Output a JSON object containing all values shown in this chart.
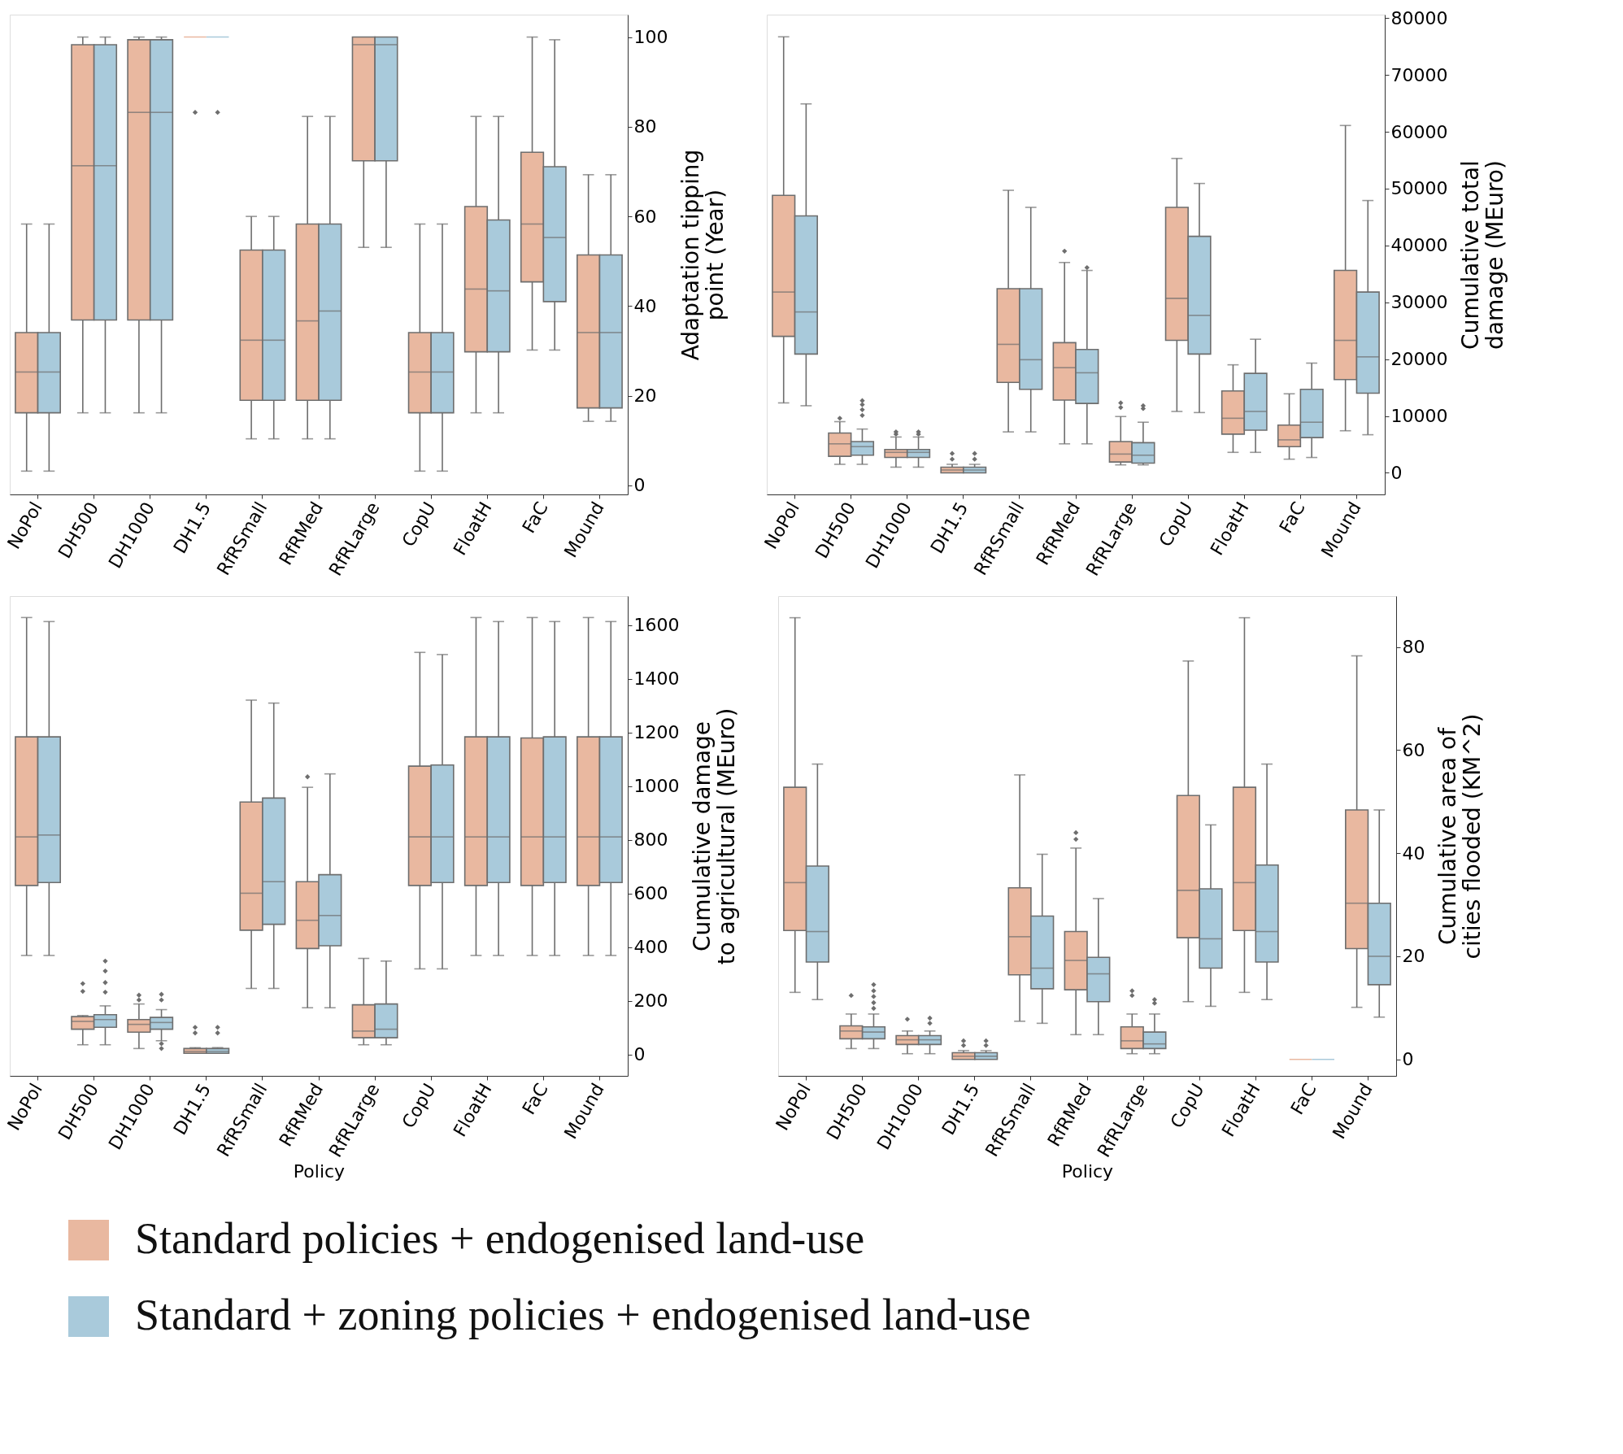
{
  "chart_data": [
    {
      "type": "box",
      "categories": [
        "NoPol",
        "DH500",
        "DH1000",
        "DH1.5",
        "RfRSmall",
        "RfRMed",
        "RfRLarge",
        "CopU",
        "FloatH",
        "FaC",
        "Mound"
      ],
      "ylabel": "Adaptation tipping\npoint (Year)",
      "ylim": [
        -2,
        105
      ],
      "yticks": [
        0,
        20,
        40,
        60,
        80,
        100
      ],
      "legend": "bottom",
      "series": [
        {
          "name": "Standard policies + endogenised land-use",
          "color": "#e9b8a0",
          "boxes": [
            {
              "low": 3.2,
              "q1": 16.2,
              "median": 25.3,
              "q3": 34.1,
              "high": 58.3
            },
            {
              "low": 16.2,
              "q1": 36.9,
              "median": 71.3,
              "q3": 98.3,
              "high": 100
            },
            {
              "low": 16.2,
              "q1": 36.9,
              "median": 83.2,
              "q3": 99.4,
              "high": 100
            },
            {
              "low": 100,
              "q1": 100,
              "median": 100,
              "q3": 100,
              "high": 100,
              "outliers": [
                83.2
              ]
            },
            {
              "low": 10.4,
              "q1": 19,
              "median": 32.4,
              "q3": 52.5,
              "high": 60
            },
            {
              "low": 10.4,
              "q1": 19,
              "median": 36.7,
              "q3": 58.3,
              "high": 82.3
            },
            {
              "low": 53.1,
              "q1": 72.4,
              "median": 98.3,
              "q3": 100,
              "high": 100
            },
            {
              "low": 3.2,
              "q1": 16.2,
              "median": 25.3,
              "q3": 34.1,
              "high": 58.3
            },
            {
              "low": 16.2,
              "q1": 29.8,
              "median": 43.8,
              "q3": 62.2,
              "high": 82.3
            },
            {
              "low": 30.2,
              "q1": 45.4,
              "median": 58.3,
              "q3": 74.3,
              "high": 100
            },
            {
              "low": 14.3,
              "q1": 17.3,
              "median": 34.1,
              "q3": 51.4,
              "high": 69.3
            }
          ]
        },
        {
          "name": "Standard + zoning policies + endogenised land-use",
          "color": "#a9cadb",
          "boxes": [
            {
              "low": 3.2,
              "q1": 16.2,
              "median": 25.3,
              "q3": 34.1,
              "high": 58.3
            },
            {
              "low": 16.2,
              "q1": 36.9,
              "median": 71.3,
              "q3": 98.3,
              "high": 100
            },
            {
              "low": 16.2,
              "q1": 36.9,
              "median": 83.2,
              "q3": 99.4,
              "high": 100
            },
            {
              "low": 100,
              "q1": 100,
              "median": 100,
              "q3": 100,
              "high": 100,
              "outliers": [
                83.2
              ]
            },
            {
              "low": 10.4,
              "q1": 19,
              "median": 32.4,
              "q3": 52.5,
              "high": 60
            },
            {
              "low": 10.4,
              "q1": 19,
              "median": 38.9,
              "q3": 58.3,
              "high": 82.3
            },
            {
              "low": 53.1,
              "q1": 72.4,
              "median": 98.3,
              "q3": 100,
              "high": 100
            },
            {
              "low": 3.2,
              "q1": 16.2,
              "median": 25.3,
              "q3": 34.1,
              "high": 58.3
            },
            {
              "low": 16.2,
              "q1": 29.8,
              "median": 43.4,
              "q3": 59.2,
              "high": 82.3
            },
            {
              "low": 30.2,
              "q1": 41,
              "median": 55.3,
              "q3": 71.1,
              "high": 99.4
            },
            {
              "low": 14.3,
              "q1": 17.3,
              "median": 34.1,
              "q3": 51.4,
              "high": 69.3
            }
          ]
        }
      ]
    },
    {
      "type": "box",
      "categories": [
        "NoPol",
        "DH500",
        "DH1000",
        "DH1.5",
        "RfRSmall",
        "RfRMed",
        "RfRLarge",
        "CopU",
        "FloatH",
        "FaC",
        "Mound"
      ],
      "ylabel": "Cumulative total\ndamage (MEuro)",
      "ylim": [
        -3800,
        80600
      ],
      "yticks": [
        0,
        10000,
        20000,
        30000,
        40000,
        50000,
        60000,
        70000,
        80000
      ],
      "series": [
        {
          "color": "#e9b8a0",
          "boxes": [
            {
              "low": 12300,
              "q1": 24000,
              "median": 31800,
              "q3": 48800,
              "high": 76700
            },
            {
              "low": 1500,
              "q1": 2900,
              "median": 5100,
              "q3": 7000,
              "high": 9000,
              "outliers": [
                9600
              ]
            },
            {
              "low": 1000,
              "q1": 2700,
              "median": 3600,
              "q3": 4100,
              "high": 6300,
              "outliers": [
                6800,
                7200
              ]
            },
            {
              "low": 0,
              "q1": 0,
              "median": 500,
              "q3": 1000,
              "high": 1500,
              "outliers": [
                2400,
                3400
              ]
            },
            {
              "low": 7200,
              "q1": 15900,
              "median": 22600,
              "q3": 32400,
              "high": 49700
            },
            {
              "low": 5100,
              "q1": 12800,
              "median": 18500,
              "q3": 22900,
              "high": 37000,
              "outliers": [
                39000
              ]
            },
            {
              "low": 1400,
              "q1": 1900,
              "median": 3300,
              "q3": 5500,
              "high": 9900,
              "outliers": [
                11500,
                12300
              ]
            },
            {
              "low": 10800,
              "q1": 23300,
              "median": 30700,
              "q3": 46700,
              "high": 55300
            },
            {
              "low": 3600,
              "q1": 6800,
              "median": 9600,
              "q3": 14400,
              "high": 19000
            },
            {
              "low": 2400,
              "q1": 4600,
              "median": 5800,
              "q3": 8400,
              "high": 13900
            },
            {
              "low": 7400,
              "q1": 16400,
              "median": 23300,
              "q3": 35600,
              "high": 61100
            }
          ]
        },
        {
          "color": "#a9cadb",
          "boxes": [
            {
              "low": 11800,
              "q1": 20900,
              "median": 28300,
              "q3": 45200,
              "high": 64900
            },
            {
              "low": 1500,
              "q1": 3100,
              "median": 4600,
              "q3": 5500,
              "high": 7700,
              "outliers": [
                10100,
                11100,
                12000,
                12700
              ]
            },
            {
              "low": 1000,
              "q1": 2700,
              "median": 3600,
              "q3": 4100,
              "high": 6300,
              "outliers": [
                6800,
                7200
              ]
            },
            {
              "low": 0,
              "q1": 0,
              "median": 500,
              "q3": 1000,
              "high": 1500,
              "outliers": [
                2400,
                3400
              ]
            },
            {
              "low": 7200,
              "q1": 14700,
              "median": 19900,
              "q3": 32400,
              "high": 46700
            },
            {
              "low": 5100,
              "q1": 12200,
              "median": 17600,
              "q3": 21700,
              "high": 35600,
              "outliers": [
                36100
              ]
            },
            {
              "low": 1400,
              "q1": 1700,
              "median": 3100,
              "q3": 5300,
              "high": 8900,
              "outliers": [
                11300,
                11800
              ]
            },
            {
              "low": 10600,
              "q1": 20900,
              "median": 27700,
              "q3": 41600,
              "high": 50900
            },
            {
              "low": 3600,
              "q1": 7500,
              "median": 10800,
              "q3": 17500,
              "high": 23500
            },
            {
              "low": 2700,
              "q1": 6200,
              "median": 8900,
              "q3": 14700,
              "high": 19300
            },
            {
              "low": 6700,
              "q1": 14000,
              "median": 20400,
              "q3": 31800,
              "high": 47900
            }
          ]
        }
      ]
    },
    {
      "type": "box",
      "categories": [
        "NoPol",
        "DH500",
        "DH1000",
        "DH1.5",
        "RfRSmall",
        "RfRMed",
        "RfRLarge",
        "CopU",
        "FloatH",
        "FaC",
        "Mound"
      ],
      "xlabel": "Policy",
      "ylabel": "Cumulative damage\nto agricultural (MEuro)",
      "ylim": [
        -80,
        1709
      ],
      "yticks": [
        0,
        200,
        400,
        600,
        800,
        1000,
        1200,
        1400,
        1600
      ],
      "series": [
        {
          "color": "#e9b8a0",
          "boxes": [
            {
              "low": 369,
              "q1": 630,
              "median": 811,
              "q3": 1184,
              "high": 1629
            },
            {
              "low": 36,
              "q1": 94,
              "median": 123,
              "q3": 141,
              "high": 145,
              "outliers": [
                235,
                264
              ]
            },
            {
              "low": 22,
              "q1": 83,
              "median": 112,
              "q3": 130,
              "high": 188,
              "outliers": [
                203,
                221
              ]
            },
            {
              "low": 4,
              "q1": 4,
              "median": 11,
              "q3": 22,
              "high": 25,
              "outliers": [
                80,
                101
              ]
            },
            {
              "low": 246,
              "q1": 463,
              "median": 601,
              "q3": 941,
              "high": 1321
            },
            {
              "low": 174,
              "q1": 395,
              "median": 500,
              "q3": 644,
              "high": 996,
              "outliers": [
                1035
              ]
            },
            {
              "low": 36,
              "q1": 62,
              "median": 87,
              "q3": 185,
              "high": 358
            },
            {
              "low": 319,
              "q1": 630,
              "median": 811,
              "q3": 1075,
              "high": 1499
            },
            {
              "low": 369,
              "q1": 630,
              "median": 811,
              "q3": 1184,
              "high": 1629
            },
            {
              "low": 369,
              "q1": 630,
              "median": 811,
              "q3": 1180,
              "high": 1629
            },
            {
              "low": 369,
              "q1": 630,
              "median": 811,
              "q3": 1184,
              "high": 1629
            }
          ]
        },
        {
          "color": "#a9cadb",
          "boxes": [
            {
              "low": 369,
              "q1": 641,
              "median": 818,
              "q3": 1184,
              "high": 1614
            },
            {
              "low": 36,
              "q1": 101,
              "median": 130,
              "q3": 148,
              "high": 181,
              "outliers": [
                232,
                268,
                311,
                348
              ]
            },
            {
              "low": 51,
              "q1": 94,
              "median": 119,
              "q3": 138,
              "high": 167,
              "outliers": [
                22,
                40,
                203,
                224
              ]
            },
            {
              "low": 4,
              "q1": 4,
              "median": 11,
              "q3": 22,
              "high": 25,
              "outliers": [
                80,
                101
              ]
            },
            {
              "low": 246,
              "q1": 485,
              "median": 644,
              "q3": 956,
              "high": 1310
            },
            {
              "low": 174,
              "q1": 405,
              "median": 518,
              "q3": 670,
              "high": 1046
            },
            {
              "low": 36,
              "q1": 62,
              "median": 94,
              "q3": 188,
              "high": 348
            },
            {
              "low": 319,
              "q1": 641,
              "median": 811,
              "q3": 1079,
              "high": 1491
            },
            {
              "low": 369,
              "q1": 641,
              "median": 811,
              "q3": 1184,
              "high": 1614
            },
            {
              "low": 369,
              "q1": 641,
              "median": 811,
              "q3": 1184,
              "high": 1614
            },
            {
              "low": 369,
              "q1": 641,
              "median": 811,
              "q3": 1184,
              "high": 1614
            }
          ]
        }
      ]
    },
    {
      "type": "box",
      "categories": [
        "NoPol",
        "DH500",
        "DH1000",
        "DH1.5",
        "RfRSmall",
        "RfRMed",
        "RfRLarge",
        "CopU",
        "FloatH",
        "FaC",
        "Mound"
      ],
      "xlabel": "Policy",
      "ylabel": "Cumulative area of\ncities flooded (KM^2)",
      "ylim": [
        -3.2,
        89.9
      ],
      "yticks": [
        0,
        20,
        40,
        60,
        80
      ],
      "series": [
        {
          "color": "#e9b8a0",
          "boxes": [
            {
              "low": 13,
              "q1": 25,
              "median": 34.3,
              "q3": 52.8,
              "high": 85.7
            },
            {
              "low": 2.1,
              "q1": 4,
              "median": 5.5,
              "q3": 6.5,
              "high": 8.8,
              "outliers": [
                12.4
              ]
            },
            {
              "low": 1.1,
              "q1": 2.9,
              "median": 3.8,
              "q3": 4.6,
              "high": 5.5,
              "outliers": [
                7.8
              ]
            },
            {
              "low": 0,
              "q1": 0,
              "median": 0.6,
              "q3": 1.3,
              "high": 1.7,
              "outliers": [
                2.7,
                3.6
              ]
            },
            {
              "low": 7.4,
              "q1": 16.4,
              "median": 23.8,
              "q3": 33.3,
              "high": 55.2
            },
            {
              "low": 4.8,
              "q1": 13.5,
              "median": 19.2,
              "q3": 24.8,
              "high": 41,
              "outliers": [
                42.7,
                44
              ]
            },
            {
              "low": 1.1,
              "q1": 2.1,
              "median": 3.6,
              "q3": 6.3,
              "high": 8.8,
              "outliers": [
                12.4,
                13.3
              ]
            },
            {
              "low": 11.2,
              "q1": 23.6,
              "median": 32.8,
              "q3": 51.2,
              "high": 77.3
            },
            {
              "low": 13,
              "q1": 25,
              "median": 34.3,
              "q3": 52.8,
              "high": 85.7
            },
            {
              "low": 0,
              "q1": 0,
              "median": 0,
              "q3": 0,
              "high": 0
            },
            {
              "low": 10.1,
              "q1": 21.5,
              "median": 30.3,
              "q3": 48.4,
              "high": 78.3
            }
          ]
        },
        {
          "color": "#a9cadb",
          "boxes": [
            {
              "low": 11.6,
              "q1": 18.9,
              "median": 24.8,
              "q3": 37.5,
              "high": 57.3
            },
            {
              "low": 2.1,
              "q1": 4,
              "median": 5.3,
              "q3": 6.3,
              "high": 8.8,
              "outliers": [
                9.9,
                11,
                12.2,
                13.3,
                14.5
              ]
            },
            {
              "low": 1.1,
              "q1": 2.9,
              "median": 3.8,
              "q3": 4.6,
              "high": 5.5,
              "outliers": [
                7,
                8
              ]
            },
            {
              "low": 0,
              "q1": 0,
              "median": 0.6,
              "q3": 1.3,
              "high": 1.7,
              "outliers": [
                2.7,
                3.6
              ]
            },
            {
              "low": 7,
              "q1": 13.7,
              "median": 17.7,
              "q3": 27.8,
              "high": 39.8
            },
            {
              "low": 4.8,
              "q1": 11.2,
              "median": 16.6,
              "q3": 19.8,
              "high": 31.2
            },
            {
              "low": 1.1,
              "q1": 2.1,
              "median": 3,
              "q3": 5.3,
              "high": 8.8,
              "outliers": [
                10.9,
                11.6
              ]
            },
            {
              "low": 10.3,
              "q1": 17.7,
              "median": 23.4,
              "q3": 33.1,
              "high": 45.5
            },
            {
              "low": 11.6,
              "q1": 18.9,
              "median": 24.8,
              "q3": 37.7,
              "high": 57.3
            },
            {
              "low": 0,
              "q1": 0,
              "median": 0,
              "q3": 0,
              "high": 0
            },
            {
              "low": 8.2,
              "q1": 14.5,
              "median": 20,
              "q3": 30.3,
              "high": 48.4
            }
          ]
        }
      ]
    }
  ]
}
